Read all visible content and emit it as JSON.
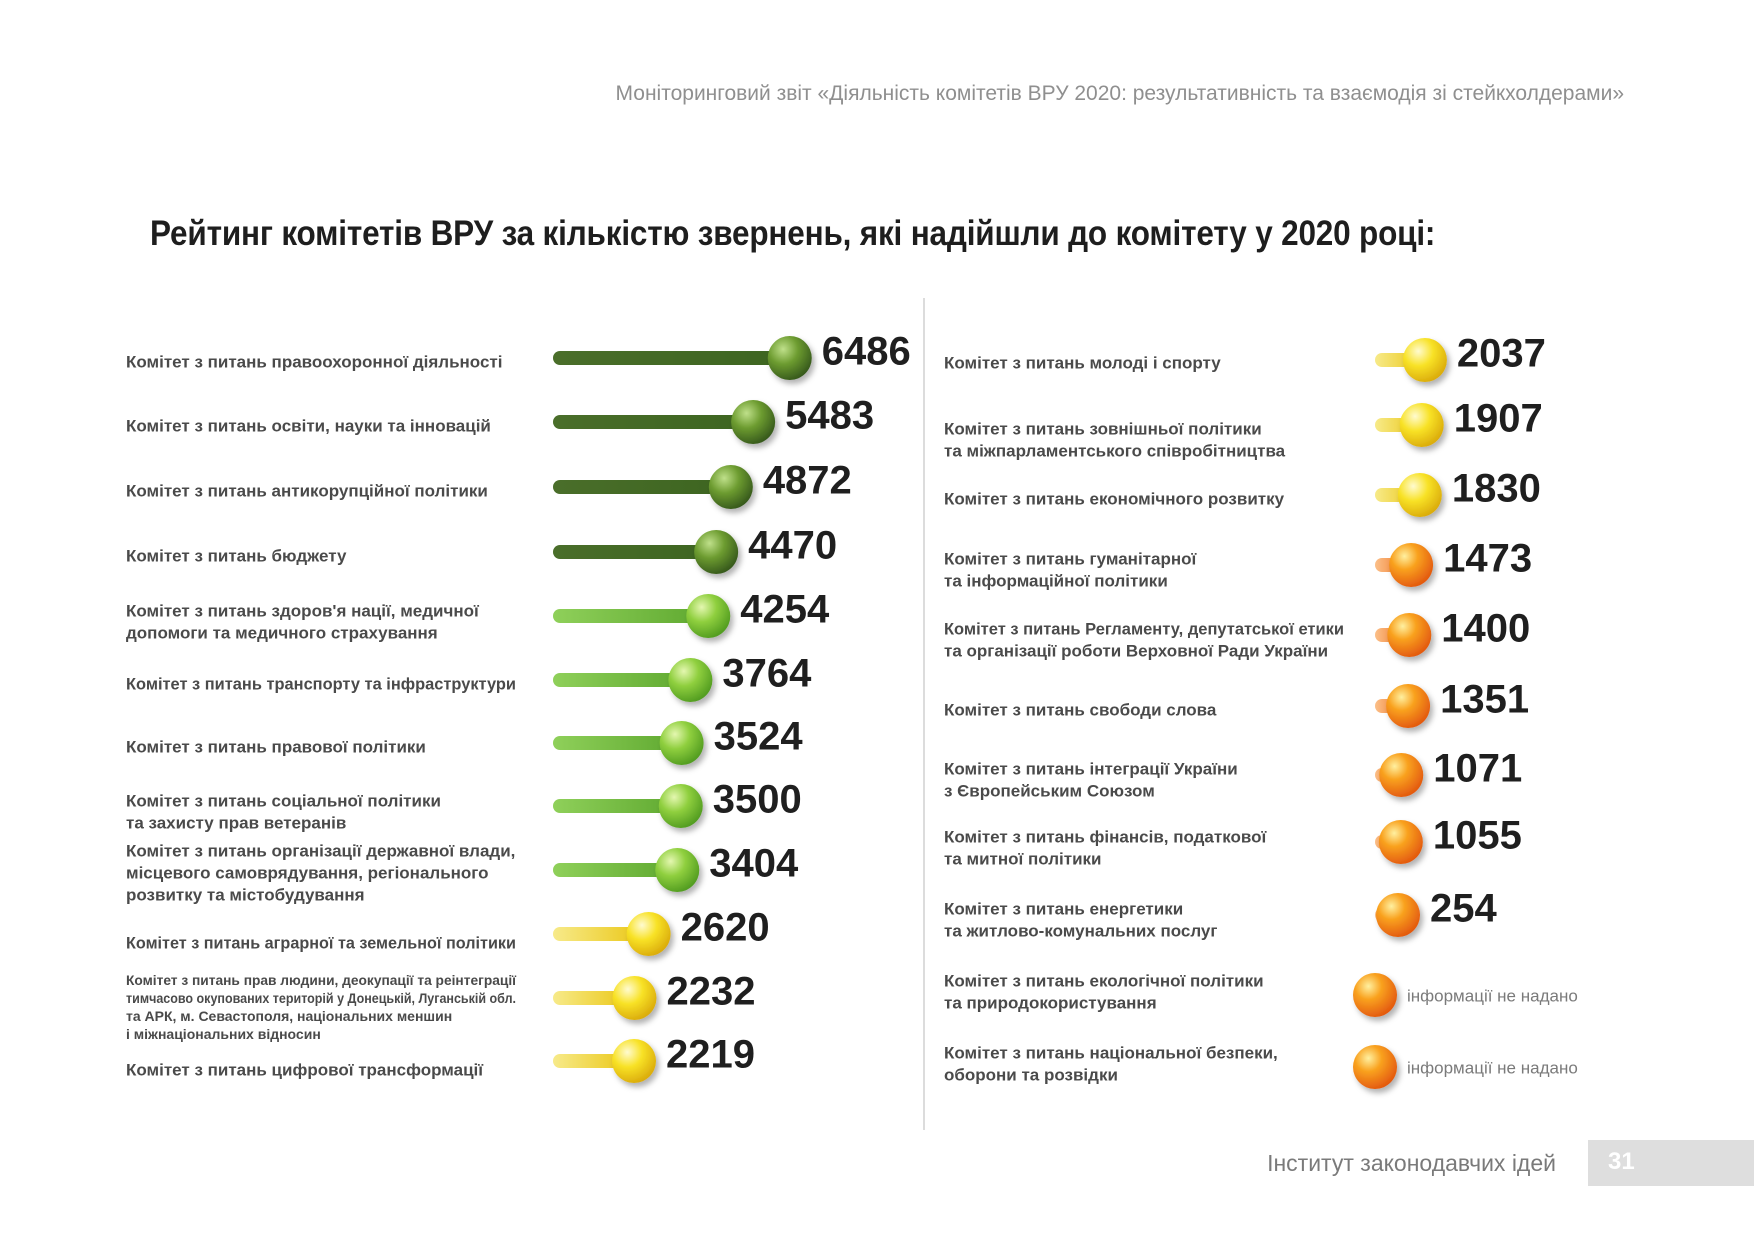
{
  "header": {
    "text": "Моніторинговий звіт «Діяльність комітетів ВРУ 2020: результативність та взаємодія зі стейкхолдерами»"
  },
  "chart_data": {
    "type": "bar",
    "title": "Рейтинг комітетів ВРУ за кількістю звернень, які надійшли до комітету у 2020 році:",
    "colors": {
      "dark_green": "#4f7a25",
      "light_green": "#77c043",
      "yellow": "#f2d91a",
      "orange": "#f0781e"
    },
    "left_panel": [
      {
        "category": [
          "Комітет з питань правоохоронної діяльності"
        ],
        "value": 6486,
        "label": "6486",
        "color": "dark_green"
      },
      {
        "category": [
          "Комітет з питань освіти, науки та інновацій"
        ],
        "value": 5483,
        "label": "5483",
        "color": "dark_green"
      },
      {
        "category": [
          "Комітет з питань антикорупційної політики"
        ],
        "value": 4872,
        "label": "4872",
        "color": "dark_green"
      },
      {
        "category": [
          "Комітет з питань бюджету"
        ],
        "value": 4470,
        "label": "4470",
        "color": "dark_green"
      },
      {
        "category": [
          "Комітет з питань здоров'я нації, медичної",
          "допомоги та медичного страхування"
        ],
        "value": 4254,
        "label": "4254",
        "color": "light_green"
      },
      {
        "category": [
          "Комітет з питань транспорту та інфраструктури"
        ],
        "value": 3764,
        "label": "3764",
        "color": "light_green"
      },
      {
        "category": [
          "Комітет з питань правової політики"
        ],
        "value": 3524,
        "label": "3524",
        "color": "light_green"
      },
      {
        "category": [
          "Комітет з питань соціальної політики",
          "та захисту прав ветеранів"
        ],
        "value": 3500,
        "label": "3500",
        "color": "light_green"
      },
      {
        "category": [
          "Комітет з питань організації державної влади,",
          "місцевого самоврядування, регіонального",
          "розвитку та містобудування"
        ],
        "value": 3404,
        "label": "3404",
        "color": "light_green"
      },
      {
        "category": [
          "Комітет з питань аграрної та земельної політики"
        ],
        "value": 2620,
        "label": "2620",
        "color": "yellow"
      },
      {
        "category": [
          "Комітет з питань прав людини, деокупації та реінтеграції",
          "тимчасово окупованих територій у Донецькій, Луганській обл.",
          "та АРК, м. Севастополя, національних меншин",
          "і міжнаціональних відносин"
        ],
        "value": 2232,
        "label": "2232",
        "color": "yellow"
      },
      {
        "category": [
          "Комітет з питань цифрової трансформації"
        ],
        "value": 2219,
        "label": "2219",
        "color": "yellow"
      }
    ],
    "right_panel": [
      {
        "category": [
          "Комітет з питань молоді і спорту"
        ],
        "value": 2037,
        "label": "2037",
        "color": "yellow"
      },
      {
        "category": [
          "Комітет з питань зовнішньої політики",
          "та міжпарламентського співробітництва"
        ],
        "value": 1907,
        "label": "1907",
        "color": "yellow"
      },
      {
        "category": [
          "Комітет з питань економічного розвитку"
        ],
        "value": 1830,
        "label": "1830",
        "color": "yellow"
      },
      {
        "category": [
          "Комітет з питань гуманітарної",
          "та інформаційної політики"
        ],
        "value": 1473,
        "label": "1473",
        "color": "orange"
      },
      {
        "category": [
          "Комітет з питань Регламенту, депутатської етики",
          "та організації роботи Верховної Ради України"
        ],
        "value": 1400,
        "label": "1400",
        "color": "orange"
      },
      {
        "category": [
          "Комітет з питань свободи слова"
        ],
        "value": 1351,
        "label": "1351",
        "color": "orange"
      },
      {
        "category": [
          "Комітет з питань інтеграції України",
          "з Європейським Союзом"
        ],
        "value": 1071,
        "label": "1071",
        "color": "orange"
      },
      {
        "category": [
          "Комітет з питань фінансів, податкової",
          "та митної політики"
        ],
        "value": 1055,
        "label": "1055",
        "color": "orange"
      },
      {
        "category": [
          "Комітет з питань енергетики",
          "та житлово-комунальних послуг"
        ],
        "value": 254,
        "label": "254",
        "color": "orange"
      },
      {
        "category": [
          "Комітет з питань екологічної політики",
          "та природокористування"
        ],
        "value": null,
        "label": "інформації не надано",
        "color": "orange"
      },
      {
        "category": [
          "Комітет з питань національної безпеки,",
          "оборони та розвідки"
        ],
        "value": null,
        "label": "інформації не надано",
        "color": "orange"
      }
    ]
  },
  "footer": {
    "institute": "Інститут законодавчих ідей",
    "page_number": "31"
  }
}
